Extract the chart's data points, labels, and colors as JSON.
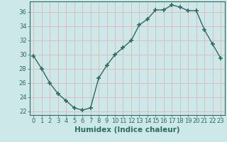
{
  "x": [
    0,
    1,
    2,
    3,
    4,
    5,
    6,
    7,
    8,
    9,
    10,
    11,
    12,
    13,
    14,
    15,
    16,
    17,
    18,
    19,
    20,
    21,
    22,
    23
  ],
  "y": [
    29.8,
    28.0,
    26.0,
    24.5,
    23.5,
    22.5,
    22.2,
    22.5,
    26.7,
    28.5,
    30.0,
    31.0,
    32.0,
    34.2,
    35.0,
    36.3,
    36.3,
    37.0,
    36.7,
    36.2,
    36.2,
    33.5,
    31.5,
    29.5
  ],
  "line_color": "#2d6b63",
  "marker": "+",
  "marker_size": 4,
  "bg_color": "#cce8e8",
  "grid_color": "#ddbcbc",
  "title": "",
  "xlabel": "Humidex (Indice chaleur)",
  "ylabel": "",
  "xlim": [
    -0.5,
    23.5
  ],
  "ylim": [
    21.5,
    37.5
  ],
  "yticks": [
    22,
    24,
    26,
    28,
    30,
    32,
    34,
    36
  ],
  "xticks": [
    0,
    1,
    2,
    3,
    4,
    5,
    6,
    7,
    8,
    9,
    10,
    11,
    12,
    13,
    14,
    15,
    16,
    17,
    18,
    19,
    20,
    21,
    22,
    23
  ],
  "tick_label_fontsize": 6,
  "xlabel_fontsize": 7.5,
  "tick_color": "#2d6b63"
}
